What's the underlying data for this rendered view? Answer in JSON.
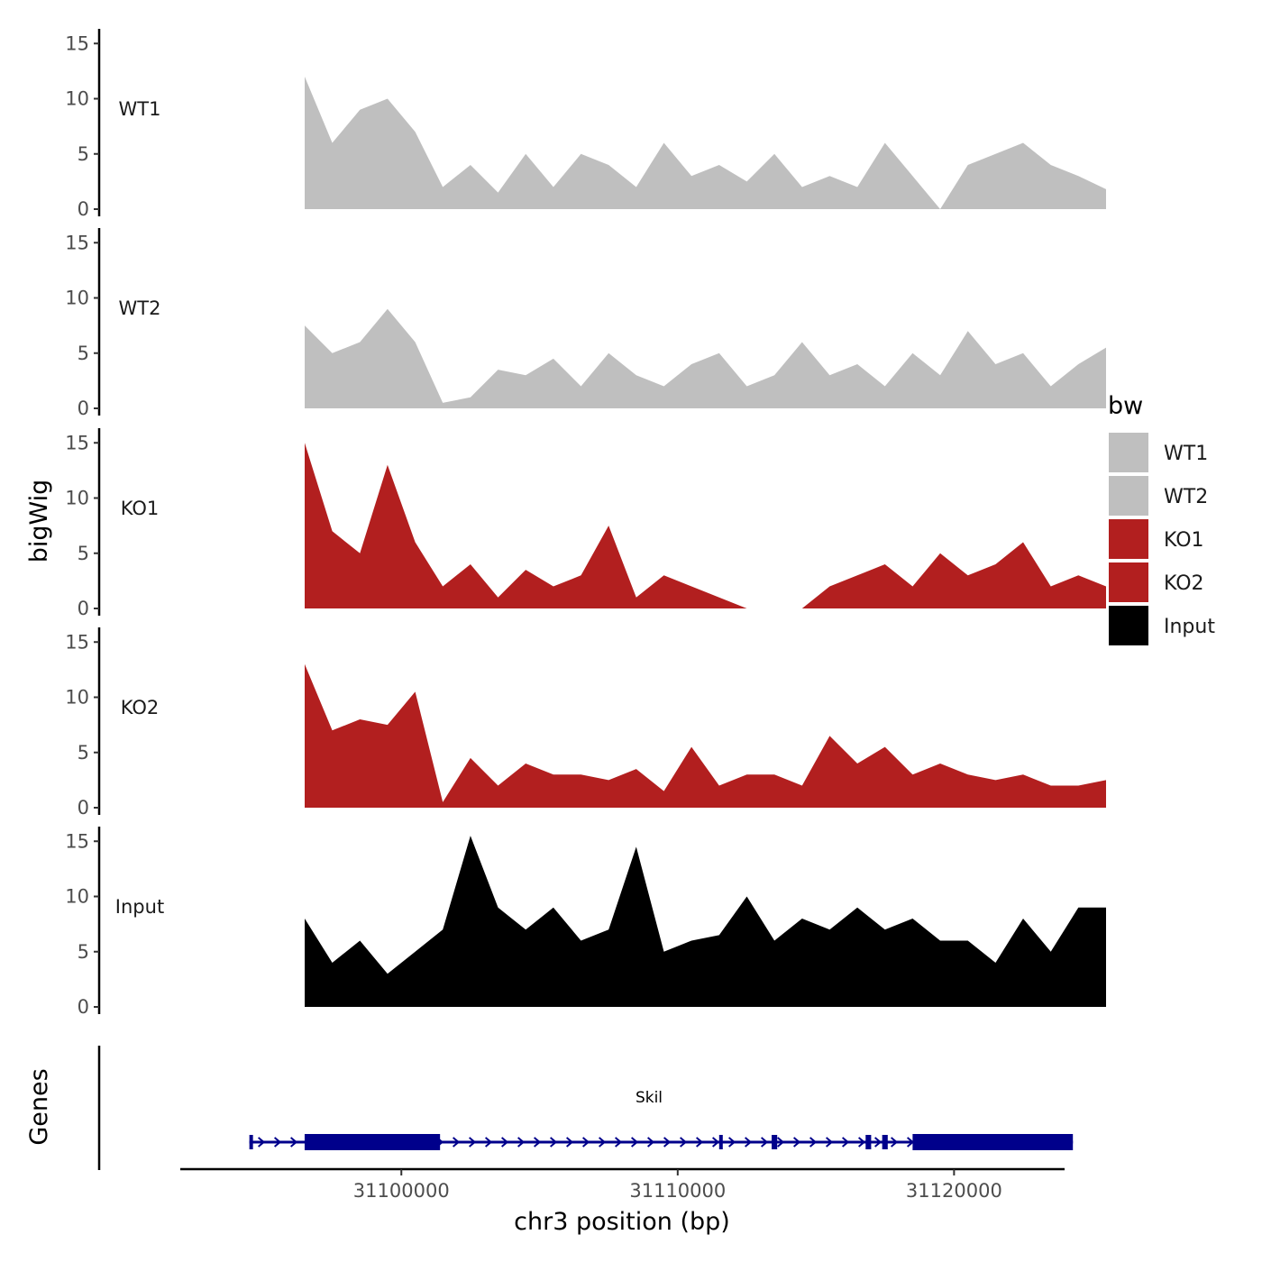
{
  "chart_data": {
    "type": "area",
    "chromosome": "chr3",
    "x_axis": {
      "title": "chr3 position (bp)",
      "range": [
        31092000,
        31124000
      ],
      "ticks": [
        31100000,
        31110000,
        31120000
      ],
      "tick_labels": [
        "31100000",
        "31110000",
        "31120000"
      ]
    },
    "y_axis": {
      "title": "bigWig",
      "range": [
        0,
        16
      ],
      "ticks": [
        0,
        5,
        10,
        15
      ],
      "tick_labels": [
        "0",
        "5",
        "10",
        "15"
      ]
    },
    "region": [
      31096500,
      31125500
    ],
    "legend": {
      "title": "bw",
      "position": "right",
      "entries": [
        {
          "label": "WT1",
          "color": "#bfbfbf"
        },
        {
          "label": "WT2",
          "color": "#bfbfbf"
        },
        {
          "label": "KO1",
          "color": "#b21f1f"
        },
        {
          "label": "KO2",
          "color": "#b21f1f"
        },
        {
          "label": "Input",
          "color": "#000000"
        }
      ]
    },
    "series": [
      {
        "name": "WT1",
        "label": "WT1",
        "color": "#bfbfbf",
        "x": [
          31096500,
          31097500,
          31098500,
          31099500,
          31100500,
          31101500,
          31102500,
          31103500,
          31104500,
          31105500,
          31106500,
          31107500,
          31108500,
          31109500,
          31110500,
          31111500,
          31112500,
          31113500,
          31114500,
          31115500,
          31116500,
          31117500,
          31118500,
          31119500,
          31120500,
          31121500,
          31122500,
          31123500,
          31124500,
          31125500
        ],
        "values": [
          12,
          6,
          9,
          10,
          7,
          2,
          4,
          1.5,
          5,
          2,
          5,
          4,
          2,
          6,
          3,
          4,
          2.5,
          5,
          2,
          3,
          2,
          6,
          3,
          0,
          4,
          5,
          6,
          4,
          3,
          1.8
        ]
      },
      {
        "name": "WT2",
        "label": "WT2",
        "color": "#bfbfbf",
        "x": [
          31096500,
          31097500,
          31098500,
          31099500,
          31100500,
          31101500,
          31102500,
          31103500,
          31104500,
          31105500,
          31106500,
          31107500,
          31108500,
          31109500,
          31110500,
          31111500,
          31112500,
          31113500,
          31114500,
          31115500,
          31116500,
          31117500,
          31118500,
          31119500,
          31120500,
          31121500,
          31122500,
          31123500,
          31124500,
          31125500
        ],
        "values": [
          7.5,
          5,
          6,
          9,
          6,
          0.5,
          1,
          3.5,
          3,
          4.5,
          2,
          5,
          3,
          2,
          4,
          5,
          2,
          3,
          6,
          3,
          4,
          2,
          5,
          3,
          7,
          4,
          5,
          2,
          4,
          5.5
        ]
      },
      {
        "name": "KO1",
        "label": "KO1",
        "color": "#b21f1f",
        "x": [
          31096500,
          31097500,
          31098500,
          31099500,
          31100500,
          31101500,
          31102500,
          31103500,
          31104500,
          31105500,
          31106500,
          31107500,
          31108500,
          31109500,
          31110500,
          31111500,
          31112500,
          31113500,
          31114500,
          31115500,
          31116500,
          31117500,
          31118500,
          31119500,
          31120500,
          31121500,
          31122500,
          31123500,
          31124500,
          31125500
        ],
        "values": [
          15,
          7,
          5,
          13,
          6,
          2,
          4,
          1,
          3.5,
          2,
          3,
          7.5,
          1,
          3,
          2,
          1,
          0,
          0,
          0,
          2,
          3,
          4,
          2,
          5,
          3,
          4,
          6,
          2,
          3,
          2
        ]
      },
      {
        "name": "KO2",
        "label": "KO2",
        "color": "#b21f1f",
        "x": [
          31096500,
          31097500,
          31098500,
          31099500,
          31100500,
          31101500,
          31102500,
          31103500,
          31104500,
          31105500,
          31106500,
          31107500,
          31108500,
          31109500,
          31110500,
          31111500,
          31112500,
          31113500,
          31114500,
          31115500,
          31116500,
          31117500,
          31118500,
          31119500,
          31120500,
          31121500,
          31122500,
          31123500,
          31124500,
          31125500
        ],
        "values": [
          13,
          7,
          8,
          7.5,
          10.5,
          0.5,
          4.5,
          2,
          4,
          3,
          3,
          2.5,
          3.5,
          1.5,
          5.5,
          2,
          3,
          3,
          2,
          6.5,
          4,
          5.5,
          3,
          4,
          3,
          2.5,
          3,
          2,
          2,
          2.5
        ]
      },
      {
        "name": "Input",
        "label": "Input",
        "color": "#000000",
        "x": [
          31096500,
          31097500,
          31098500,
          31099500,
          31100500,
          31101500,
          31102500,
          31103500,
          31104500,
          31105500,
          31106500,
          31107500,
          31108500,
          31109500,
          31110500,
          31111500,
          31112500,
          31113500,
          31114500,
          31115500,
          31116500,
          31117500,
          31118500,
          31119500,
          31120500,
          31121500,
          31122500,
          31123500,
          31124500,
          31125500
        ],
        "values": [
          8,
          4,
          6,
          3,
          5,
          7,
          15.5,
          9,
          7,
          9,
          6,
          7,
          14.5,
          5,
          6,
          6.5,
          10,
          6,
          8,
          7,
          9,
          7,
          8,
          6,
          6,
          4,
          8,
          5,
          9,
          9
        ]
      }
    ],
    "genes_track": {
      "title": "Genes",
      "gene_name": "Skil",
      "color": "#00008b",
      "strand": "+",
      "start": 31094500,
      "end": 31124300,
      "exons": [
        {
          "start": 31094500,
          "end": 31094600
        },
        {
          "start": 31096500,
          "end": 31101400
        },
        {
          "start": 31111500,
          "end": 31111600
        },
        {
          "start": 31113400,
          "end": 31113600
        },
        {
          "start": 31116800,
          "end": 31117000
        },
        {
          "start": 31117400,
          "end": 31117600
        },
        {
          "start": 31118500,
          "end": 31124300
        }
      ]
    }
  }
}
